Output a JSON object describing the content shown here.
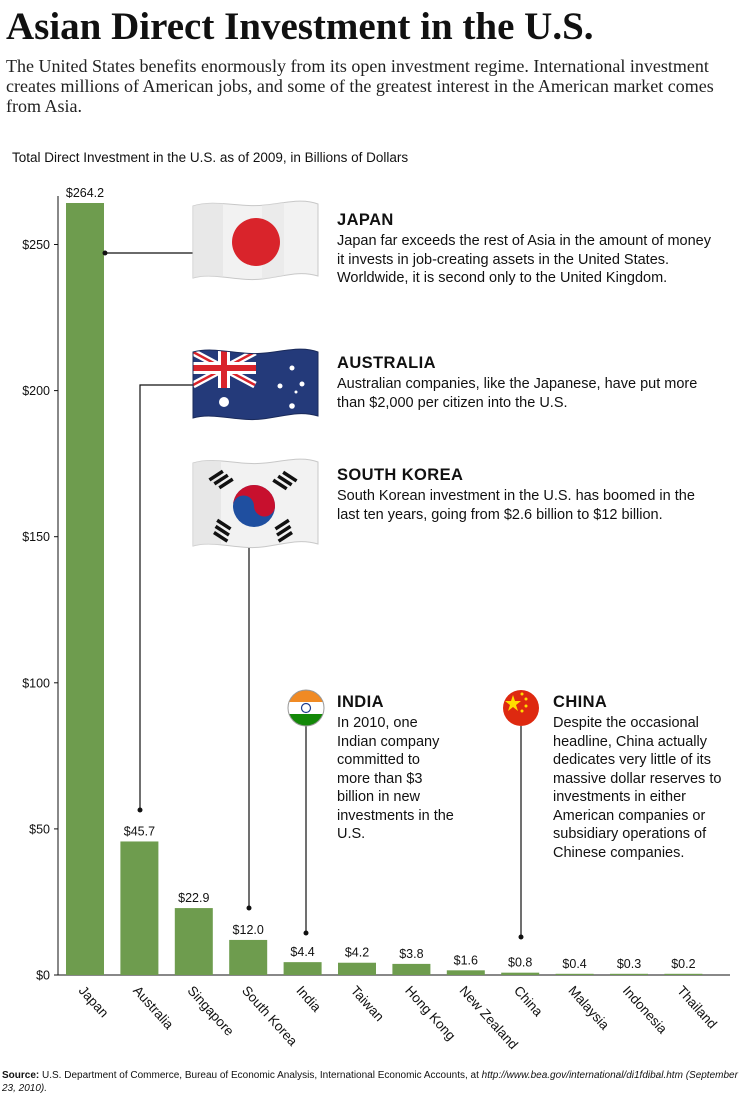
{
  "header": {
    "title": "Asian Direct Investment in the U.S.",
    "subtitle": "The United States benefits enormously from its open investment regime. International investment creates millions of American jobs, and some of the greatest interest in the American market comes from Asia."
  },
  "chart_data": {
    "type": "bar",
    "title": "Total Direct Investment in the U.S. as of 2009, in Billions of Dollars",
    "xlabel": "",
    "ylabel": "",
    "categories": [
      "Japan",
      "Australia",
      "Singapore",
      "South Korea",
      "India",
      "Taiwan",
      "Hong Kong",
      "New Zealand",
      "China",
      "Malaysia",
      "Indonesia",
      "Thailand"
    ],
    "values": [
      264.2,
      45.7,
      22.9,
      12.0,
      4.4,
      4.2,
      3.8,
      1.6,
      0.8,
      0.4,
      0.3,
      0.2
    ],
    "value_labels": [
      "$264.2",
      "$45.7",
      "$22.9",
      "$12.0",
      "$4.4",
      "$4.2",
      "$3.8",
      "$1.6",
      "$0.8",
      "$0.4",
      "$0.3",
      "$0.2"
    ],
    "y_ticks": [
      0,
      50,
      100,
      150,
      200,
      250
    ],
    "y_tick_labels": [
      "$0",
      "$50",
      "$100",
      "$150",
      "$200",
      "$250"
    ],
    "ylim": [
      0,
      264.2
    ],
    "grid": false,
    "bar_color": "#6e9c4e"
  },
  "callouts": [
    {
      "key": "japan",
      "name": "JAPAN",
      "text": "Japan far exceeds the rest of Asia in the amount of money it invests in job-creating assets in the United States. Worldwide, it is second only to the United Kingdom."
    },
    {
      "key": "australia",
      "name": "AUSTRALIA",
      "text": "Australian companies, like the Japanese, have put more than $2,000 per citizen into the U.S."
    },
    {
      "key": "south_korea",
      "name": "SOUTH KOREA",
      "text": "South Korean investment in the U.S. has boomed in the last ten years, going from $2.6 billion to $12 billion."
    },
    {
      "key": "india",
      "name": "INDIA",
      "text": "In 2010, one Indian company committed to more than $3 billion in new investments in the U.S."
    },
    {
      "key": "china",
      "name": "CHINA",
      "text": "Despite the occasional headline, China actually dedicates very little of its massive dollar reserves to investments in either American companies or subsidiary operations of Chinese companies."
    }
  ],
  "source": {
    "label": "Source:",
    "text": "U.S. Department of Commerce, Bureau of Economic Analysis, International Economic Accounts, at",
    "url": "http://www.bea.gov/international/di1fdibal.htm",
    "date": "(September 23, 2010)."
  },
  "colors": {
    "japan_red": "#d9242b",
    "au_blue": "#243a7a",
    "kr_red": "#c8102e",
    "kr_blue": "#1f4fa0",
    "in_saffron": "#f08a24",
    "in_green": "#138808",
    "cn_red": "#de2910",
    "cn_yellow": "#ffde00"
  }
}
